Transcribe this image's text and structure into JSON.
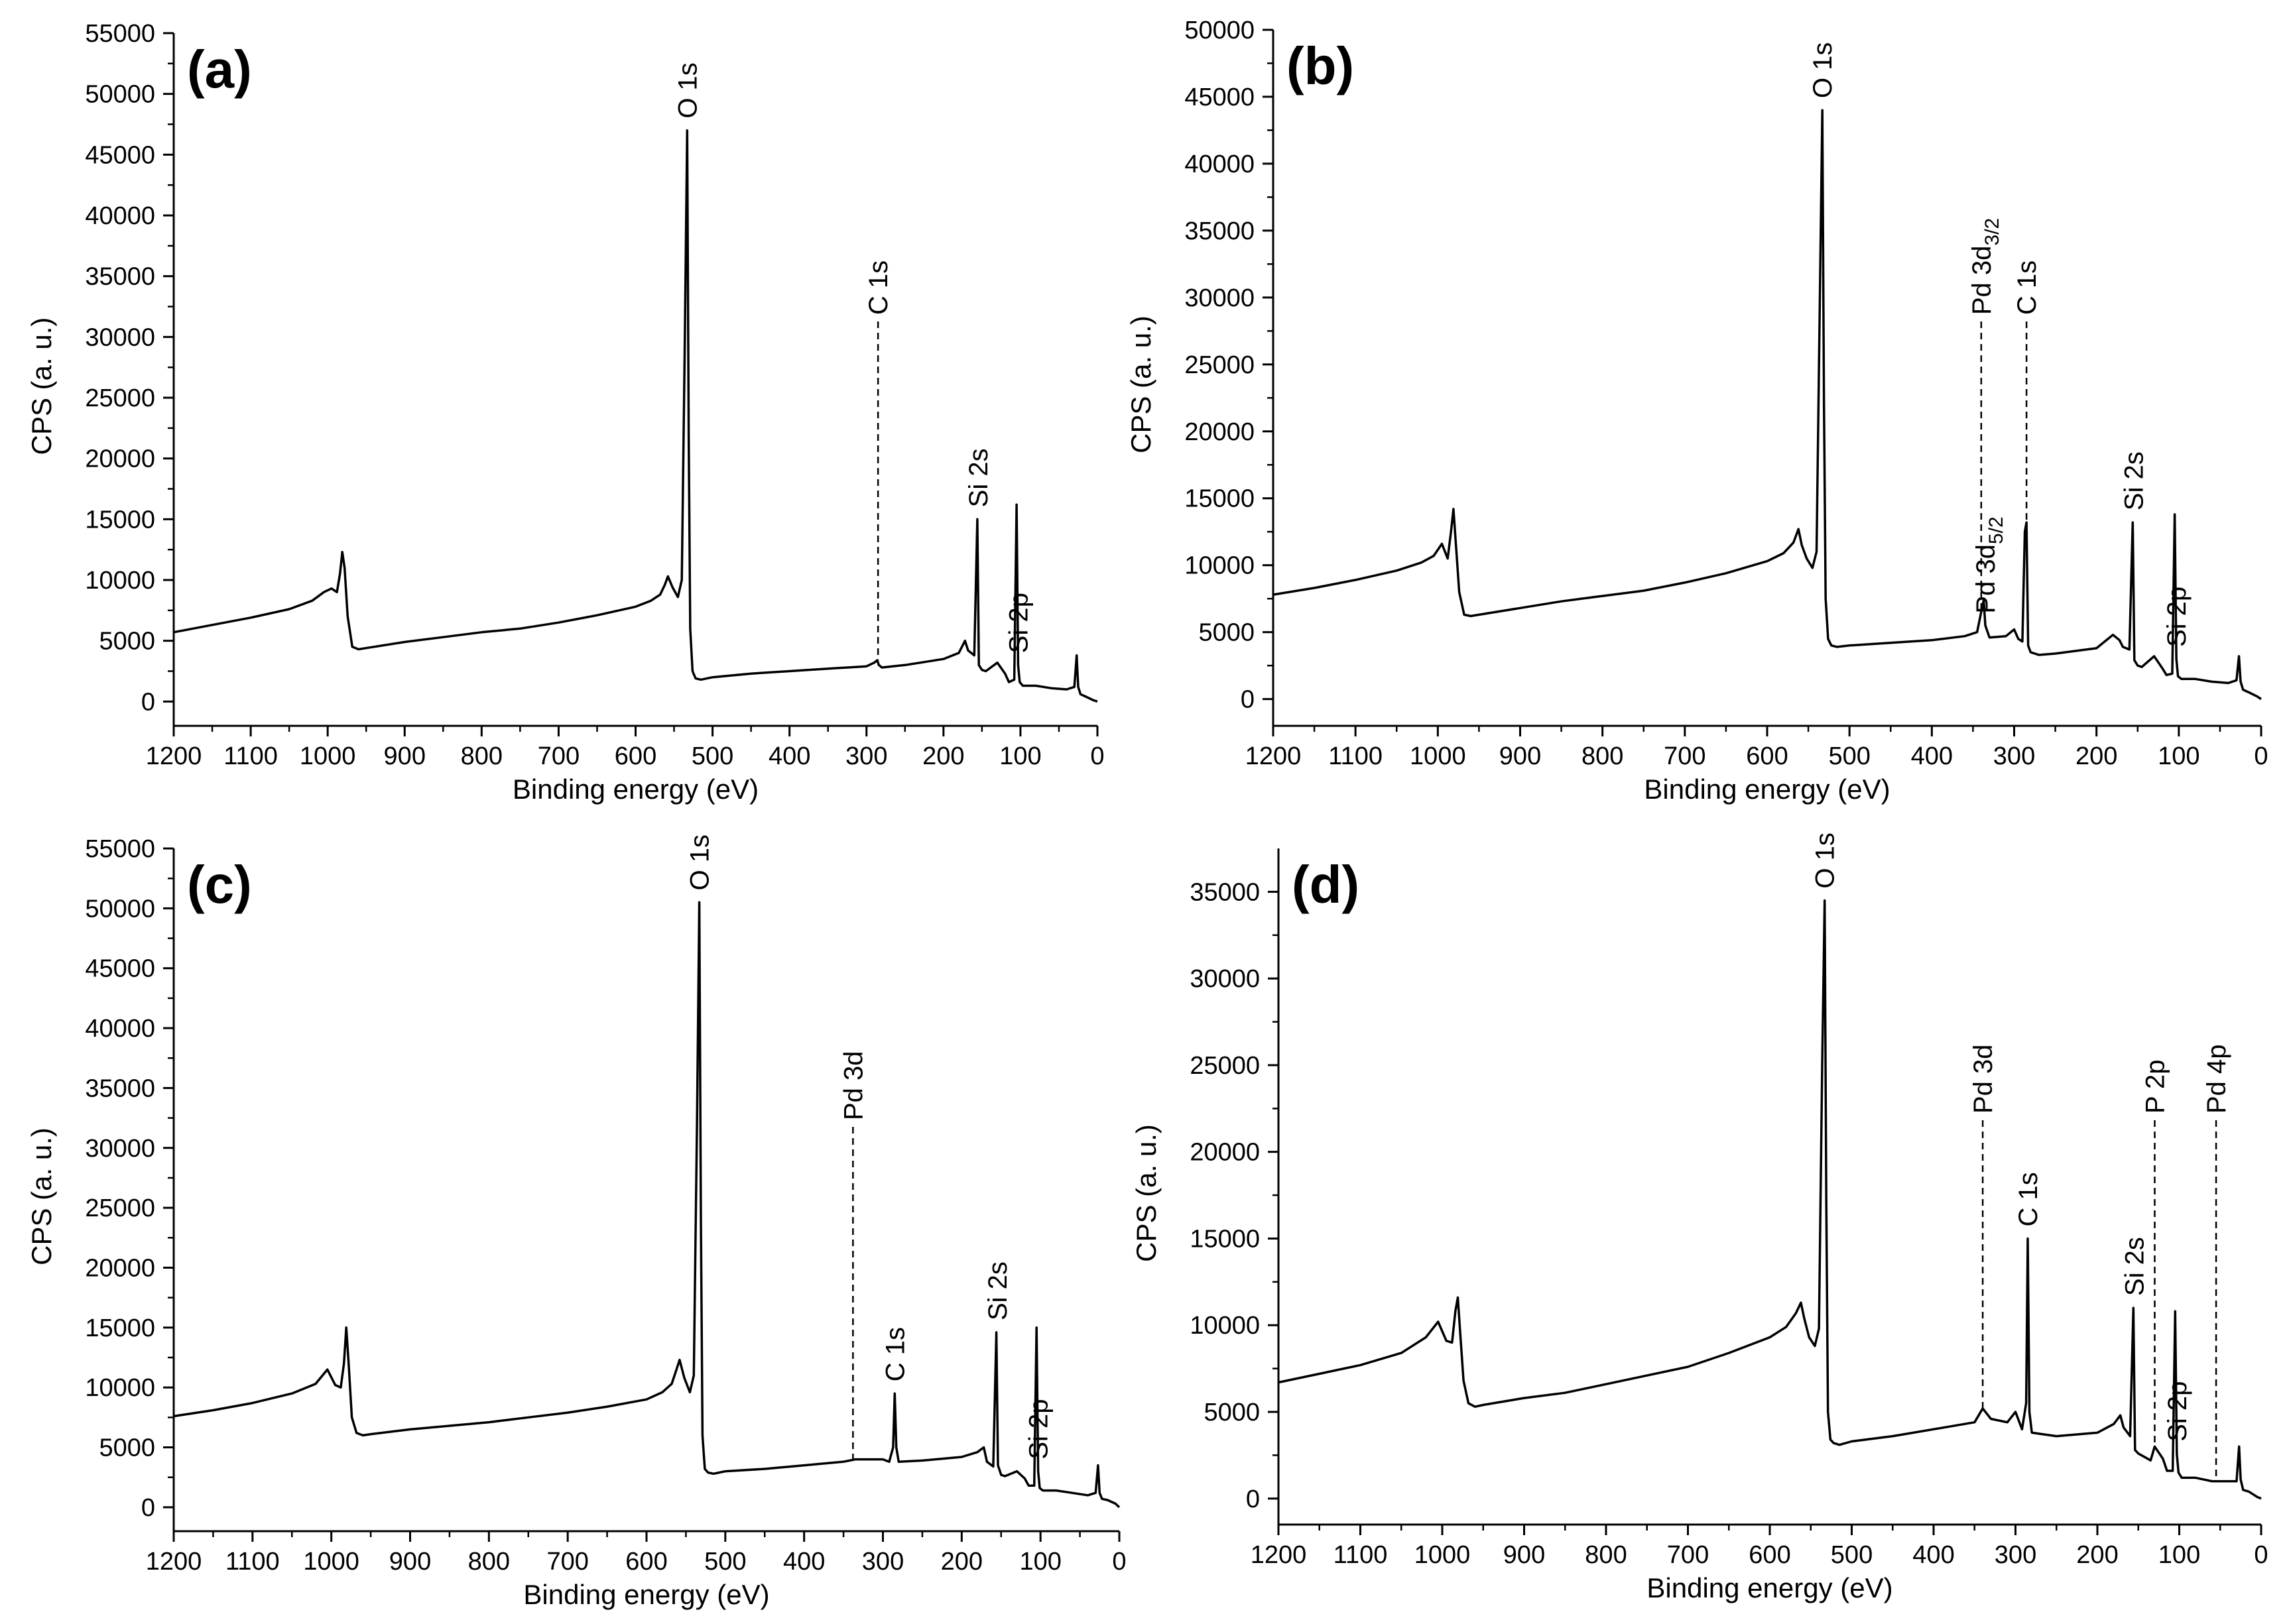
{
  "figure": {
    "panels": [
      "(a)",
      "(b)",
      "(c)",
      "(d)"
    ]
  },
  "chart_data": [
    {
      "type": "line",
      "panel": "(a)",
      "title": "(a)",
      "xlabel": "Binding energy (eV)",
      "ylabel": "CPS (a. u.)",
      "xlim": [
        1200,
        0
      ],
      "ylim": [
        -2000,
        55000
      ],
      "x_reversed": true,
      "xticks": [
        1200,
        1100,
        1000,
        900,
        800,
        700,
        600,
        500,
        400,
        300,
        200,
        100,
        0
      ],
      "yticks": [
        0,
        5000,
        10000,
        15000,
        20000,
        25000,
        30000,
        35000,
        40000,
        45000,
        50000,
        55000
      ],
      "grid": false,
      "series": [
        {
          "name": "spectrum (a)",
          "x": [
            1200,
            1150,
            1100,
            1050,
            1020,
            1005,
            995,
            988,
            984,
            981,
            978,
            974,
            968,
            960,
            950,
            900,
            850,
            800,
            750,
            700,
            650,
            600,
            580,
            568,
            562,
            558,
            552,
            545,
            540,
            536,
            533,
            531,
            529,
            526,
            522,
            515,
            500,
            450,
            400,
            350,
            300,
            290,
            286,
            284,
            280,
            250,
            200,
            180,
            172,
            168,
            160,
            156,
            154,
            150,
            145,
            130,
            120,
            115,
            108,
            105,
            103,
            101,
            97,
            80,
            60,
            40,
            30,
            27,
            25,
            22,
            15,
            5,
            0
          ],
          "y": [
            5700,
            6300,
            6900,
            7600,
            8300,
            9000,
            9300,
            9000,
            10500,
            12300,
            11000,
            7000,
            4500,
            4300,
            4400,
            4900,
            5300,
            5700,
            6000,
            6500,
            7100,
            7800,
            8300,
            8800,
            9600,
            10300,
            9400,
            8600,
            10000,
            30000,
            47000,
            22000,
            6000,
            2500,
            1900,
            1800,
            2000,
            2300,
            2500,
            2700,
            2900,
            3200,
            3400,
            3000,
            2800,
            3000,
            3500,
            4000,
            5000,
            4200,
            3800,
            15000,
            3000,
            2600,
            2500,
            3200,
            2300,
            1600,
            1800,
            16200,
            3000,
            1600,
            1300,
            1300,
            1100,
            1000,
            1200,
            3800,
            1200,
            600,
            400,
            100,
            0
          ]
        }
      ],
      "annotations": [
        {
          "label": "O 1s",
          "x": 533,
          "dashed": false
        },
        {
          "label": "C 1s",
          "x": 285,
          "dashed": true
        },
        {
          "label": "Si 2s",
          "x": 155,
          "dashed": false
        },
        {
          "label": "Si 2p",
          "x": 103,
          "dashed": false
        }
      ]
    },
    {
      "type": "line",
      "panel": "(b)",
      "title": "(b)",
      "xlabel": "Binding energy (eV)",
      "ylabel": "CPS (a. u.)",
      "xlim": [
        1200,
        0
      ],
      "ylim": [
        -2000,
        50000
      ],
      "x_reversed": true,
      "xticks": [
        1200,
        1100,
        1000,
        900,
        800,
        700,
        600,
        500,
        400,
        300,
        200,
        100,
        0
      ],
      "yticks": [
        0,
        5000,
        10000,
        15000,
        20000,
        25000,
        30000,
        35000,
        40000,
        45000,
        50000
      ],
      "grid": false,
      "series": [
        {
          "name": "spectrum (b)",
          "x": [
            1200,
            1150,
            1100,
            1050,
            1020,
            1005,
            995,
            988,
            984,
            981,
            978,
            974,
            968,
            960,
            950,
            900,
            850,
            800,
            750,
            700,
            650,
            600,
            580,
            568,
            562,
            558,
            552,
            545,
            540,
            536,
            533,
            531,
            529,
            526,
            522,
            515,
            500,
            450,
            400,
            360,
            345,
            340,
            337,
            335,
            330,
            310,
            300,
            295,
            290,
            287,
            285,
            283,
            280,
            270,
            250,
            200,
            180,
            172,
            168,
            160,
            156,
            154,
            150,
            145,
            130,
            120,
            115,
            108,
            105,
            103,
            101,
            97,
            80,
            60,
            40,
            30,
            27,
            25,
            22,
            15,
            5,
            0
          ],
          "y": [
            7800,
            8300,
            8900,
            9600,
            10200,
            10700,
            11600,
            10500,
            12500,
            14200,
            11500,
            8000,
            6300,
            6200,
            6300,
            6800,
            7300,
            7700,
            8100,
            8700,
            9400,
            10300,
            10900,
            11700,
            12700,
            11500,
            10500,
            9800,
            11000,
            30000,
            44000,
            22000,
            7500,
            4500,
            4000,
            3900,
            4000,
            4200,
            4400,
            4700,
            5000,
            6500,
            7400,
            5500,
            4600,
            4700,
            5200,
            4500,
            4300,
            12500,
            13200,
            4000,
            3500,
            3300,
            3400,
            3800,
            4800,
            4400,
            3900,
            3700,
            13200,
            2900,
            2500,
            2400,
            3200,
            2300,
            1800,
            1900,
            13800,
            3000,
            1700,
            1500,
            1500,
            1300,
            1200,
            1400,
            3200,
            1300,
            700,
            500,
            200,
            0
          ]
        }
      ],
      "annotations": [
        {
          "label": "O 1s",
          "x": 533,
          "dashed": false
        },
        {
          "label": "Pd 3d",
          "sub": "3/2",
          "x": 340,
          "dashed": true
        },
        {
          "label": "Pd 3d",
          "sub": "5/2",
          "x": 335,
          "dashed": false
        },
        {
          "label": "C 1s",
          "x": 285,
          "dashed": true
        },
        {
          "label": "Si 2s",
          "x": 155,
          "dashed": false
        },
        {
          "label": "Si 2p",
          "x": 103,
          "dashed": false
        }
      ]
    },
    {
      "type": "line",
      "panel": "(c)",
      "title": "(c)",
      "xlabel": "Binding energy (eV)",
      "ylabel": "CPS (a. u.)",
      "xlim": [
        1200,
        0
      ],
      "ylim": [
        -2000,
        55000
      ],
      "x_reversed": true,
      "xticks": [
        1200,
        1100,
        1000,
        900,
        800,
        700,
        600,
        500,
        400,
        300,
        200,
        100,
        0
      ],
      "yticks": [
        0,
        5000,
        10000,
        15000,
        20000,
        25000,
        30000,
        35000,
        40000,
        45000,
        50000,
        55000
      ],
      "grid": false,
      "series": [
        {
          "name": "spectrum (c)",
          "x": [
            1200,
            1150,
            1100,
            1050,
            1020,
            1005,
            995,
            988,
            984,
            981,
            978,
            974,
            968,
            960,
            950,
            900,
            850,
            800,
            750,
            700,
            650,
            600,
            580,
            568,
            562,
            558,
            552,
            545,
            540,
            536,
            533,
            531,
            529,
            526,
            522,
            515,
            500,
            450,
            400,
            350,
            335,
            300,
            292,
            287,
            285,
            283,
            280,
            250,
            200,
            180,
            172,
            168,
            160,
            156,
            154,
            150,
            145,
            130,
            120,
            115,
            108,
            105,
            103,
            101,
            97,
            80,
            60,
            40,
            30,
            27,
            25,
            22,
            15,
            5,
            0
          ],
          "y": [
            7600,
            8100,
            8700,
            9500,
            10300,
            11500,
            10200,
            10000,
            12000,
            15000,
            12000,
            7500,
            6200,
            6000,
            6100,
            6500,
            6800,
            7100,
            7500,
            7900,
            8400,
            9000,
            9600,
            10300,
            11500,
            12300,
            10800,
            9600,
            11000,
            32000,
            50500,
            24000,
            6000,
            3200,
            2900,
            2800,
            3000,
            3200,
            3500,
            3800,
            4000,
            4000,
            3800,
            5000,
            9500,
            5000,
            3800,
            3900,
            4200,
            4600,
            5000,
            3800,
            3400,
            14600,
            3500,
            2700,
            2600,
            3000,
            2400,
            1800,
            1800,
            15000,
            3000,
            1600,
            1400,
            1400,
            1200,
            1000,
            1200,
            3500,
            1200,
            700,
            600,
            300,
            0
          ]
        }
      ],
      "annotations": [
        {
          "label": "O 1s",
          "x": 533,
          "dashed": false
        },
        {
          "label": "Pd 3d",
          "x": 338,
          "dashed": true
        },
        {
          "label": "C 1s",
          "x": 285,
          "dashed": false
        },
        {
          "label": "Si 2s",
          "x": 155,
          "dashed": false
        },
        {
          "label": "Si 2p",
          "x": 103,
          "dashed": false
        }
      ]
    },
    {
      "type": "line",
      "panel": "(d)",
      "title": "(d)",
      "xlabel": "Binding energy (eV)",
      "ylabel": "CPS (a. u.)",
      "xlim": [
        1200,
        0
      ],
      "ylim": [
        -1500,
        37500
      ],
      "x_reversed": true,
      "xticks": [
        1200,
        1100,
        1000,
        900,
        800,
        700,
        600,
        500,
        400,
        300,
        200,
        100,
        0
      ],
      "yticks": [
        0,
        5000,
        10000,
        15000,
        20000,
        25000,
        30000,
        35000
      ],
      "grid": false,
      "series": [
        {
          "name": "spectrum (d)",
          "x": [
            1200,
            1150,
            1100,
            1050,
            1020,
            1005,
            995,
            988,
            984,
            981,
            978,
            974,
            968,
            960,
            950,
            900,
            850,
            800,
            750,
            700,
            650,
            600,
            580,
            568,
            562,
            558,
            552,
            545,
            540,
            536,
            533,
            531,
            529,
            526,
            522,
            515,
            500,
            450,
            400,
            350,
            340,
            330,
            310,
            300,
            292,
            287,
            285,
            283,
            280,
            250,
            200,
            180,
            172,
            168,
            160,
            156,
            154,
            150,
            135,
            130,
            120,
            115,
            108,
            105,
            103,
            101,
            97,
            80,
            60,
            55,
            40,
            30,
            27,
            25,
            22,
            15,
            5,
            0
          ],
          "y": [
            6700,
            7200,
            7700,
            8400,
            9300,
            10200,
            9100,
            9000,
            10800,
            11600,
            9500,
            6800,
            5500,
            5300,
            5400,
            5800,
            6100,
            6600,
            7100,
            7600,
            8400,
            9300,
            9900,
            10700,
            11300,
            10400,
            9300,
            8800,
            9800,
            25000,
            34500,
            17000,
            5000,
            3400,
            3200,
            3100,
            3300,
            3600,
            4000,
            4400,
            5200,
            4600,
            4400,
            5000,
            4000,
            5500,
            15000,
            5000,
            3800,
            3600,
            3800,
            4300,
            4800,
            4100,
            3600,
            11000,
            2800,
            2600,
            2200,
            3000,
            2300,
            1600,
            1600,
            10800,
            2600,
            1500,
            1200,
            1200,
            1000,
            1000,
            1000,
            1000,
            3000,
            1100,
            500,
            400,
            100,
            0
          ]
        }
      ],
      "annotations": [
        {
          "label": "O 1s",
          "x": 533,
          "dashed": false
        },
        {
          "label": "Pd 3d",
          "x": 340,
          "dashed": true
        },
        {
          "label": "C 1s",
          "x": 285,
          "dashed": false
        },
        {
          "label": "Si 2s",
          "x": 155,
          "dashed": false
        },
        {
          "label": "P 2p",
          "x": 130,
          "dashed": true
        },
        {
          "label": "Si 2p",
          "x": 103,
          "dashed": false
        },
        {
          "label": "Pd 4p",
          "x": 55,
          "dashed": true
        }
      ]
    }
  ]
}
